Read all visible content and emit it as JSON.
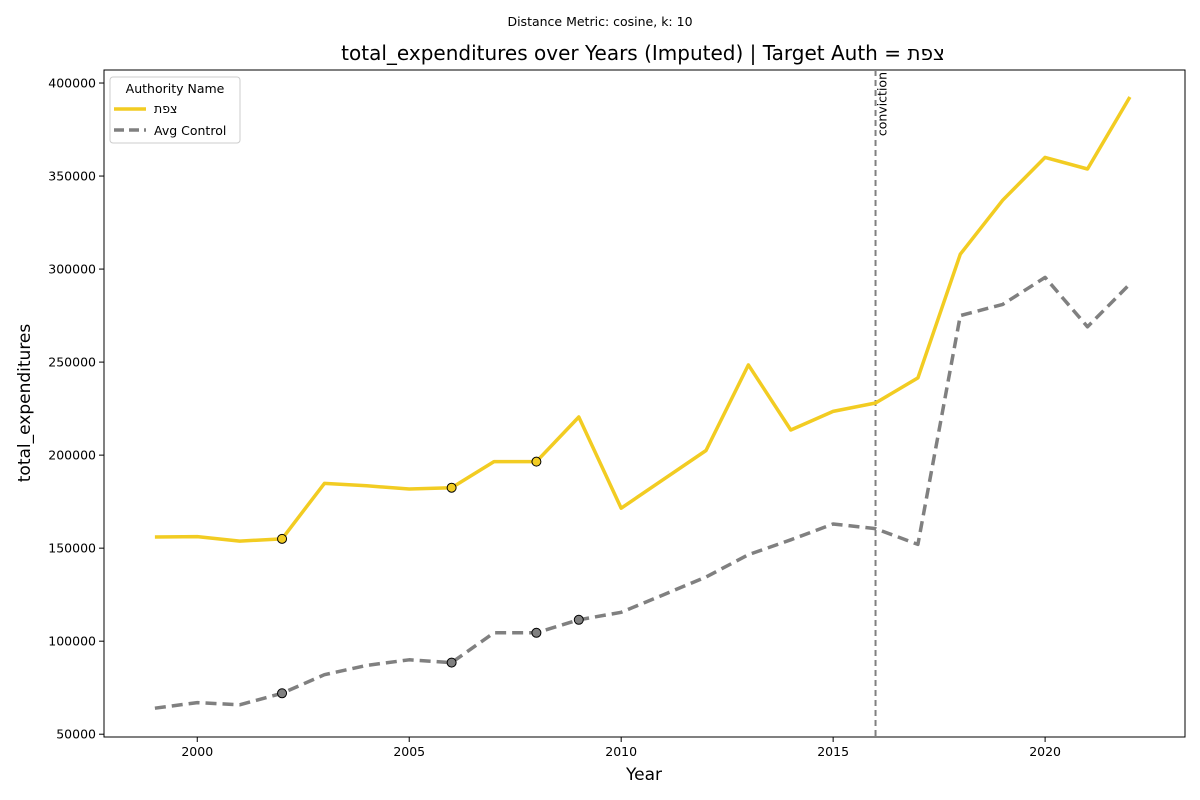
{
  "chart_data": {
    "type": "line",
    "suptitle": "Distance Metric: cosine, k: 10",
    "title": "total_expenditures over Years (Imputed) | Target Auth = צפת",
    "xlabel": "Year",
    "ylabel": "total_expenditures",
    "xlim": [
      1997.8,
      2023.3
    ],
    "ylim": [
      48500,
      407000
    ],
    "xticks": [
      2000,
      2005,
      2010,
      2015,
      2020
    ],
    "yticks": [
      50000,
      100000,
      150000,
      200000,
      250000,
      300000,
      350000,
      400000
    ],
    "grid": false,
    "legend": {
      "title": "Authority Name",
      "placement": "top-left",
      "entries": [
        "צפת",
        "Avg Control"
      ]
    },
    "colors": {
      "target": "#f2cc22",
      "control": "#808080"
    },
    "x": [
      1999,
      2000,
      2001,
      2002,
      2003,
      2004,
      2005,
      2006,
      2007,
      2008,
      2009,
      2010,
      2011,
      2012,
      2013,
      2014,
      2015,
      2016,
      2017,
      2018,
      2019,
      2020,
      2021,
      2022
    ],
    "series": [
      {
        "name": "צפת",
        "style": "solid",
        "values": [
          156000,
          156200,
          153800,
          155000,
          184800,
          183500,
          181800,
          182500,
          196500,
          196500,
          220500,
          171500,
          187000,
          202500,
          248500,
          213500,
          223500,
          228000,
          241500,
          308000,
          337000,
          360000,
          353800,
          392500
        ],
        "imputed_x": [
          2002,
          2006,
          2008
        ]
      },
      {
        "name": "Avg Control",
        "style": "dashed",
        "values": [
          64000,
          67000,
          65800,
          72000,
          82000,
          87000,
          90000,
          88500,
          104500,
          104500,
          111500,
          115500,
          125000,
          134500,
          146500,
          154500,
          163000,
          160500,
          152000,
          275000,
          281000,
          295500,
          269000,
          292000
        ],
        "imputed_x": [
          2002,
          2006,
          2008,
          2009
        ]
      }
    ],
    "annotations": [
      {
        "type": "vline",
        "x": 2016,
        "label": "conviction"
      }
    ]
  }
}
